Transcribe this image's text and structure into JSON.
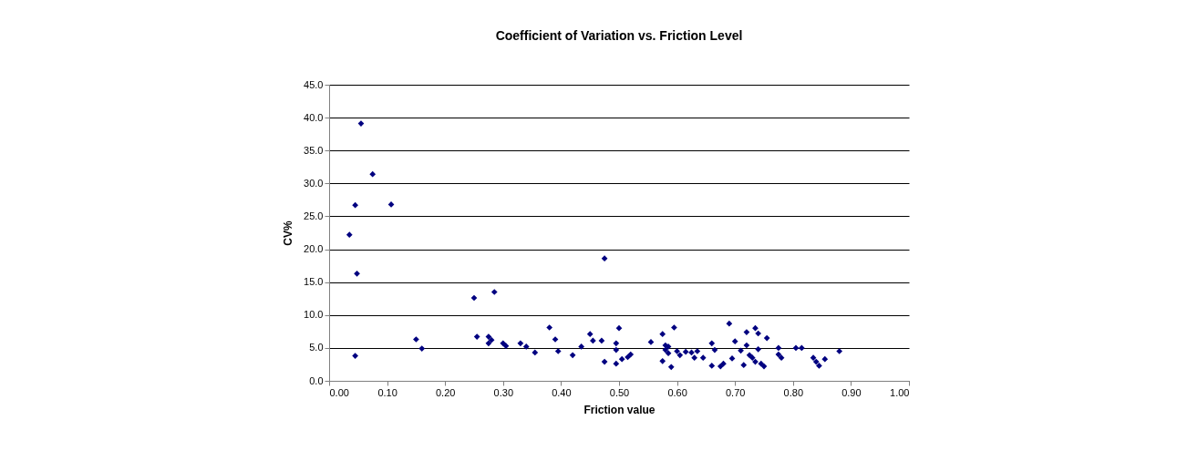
{
  "chart_data": {
    "type": "scatter",
    "title": "Coefficient of Variation vs. Friction Level",
    "xlabel": "Friction value",
    "ylabel": "CV%",
    "marker": "diamond",
    "grid": "y",
    "xlim": [
      0,
      1
    ],
    "xticks": [
      {
        "value": 0,
        "label": "0.00"
      },
      {
        "value": 0.1,
        "label": "0.10"
      },
      {
        "value": 0.2,
        "label": "0.20"
      },
      {
        "value": 0.3,
        "label": "0.30"
      },
      {
        "value": 0.4,
        "label": "0.40"
      },
      {
        "value": 0.5,
        "label": "0.50"
      },
      {
        "value": 0.6,
        "label": "0.60"
      },
      {
        "value": 0.7,
        "label": "0.70"
      },
      {
        "value": 0.8,
        "label": "0.80"
      },
      {
        "value": 0.9,
        "label": "0.90"
      },
      {
        "value": 1,
        "label": "1.00"
      }
    ],
    "ylim": [
      0,
      45
    ],
    "yticks": [
      {
        "value": 0,
        "label": "0.0"
      },
      {
        "value": 5,
        "label": "5.0"
      },
      {
        "value": 10,
        "label": "10.0"
      },
      {
        "value": 15,
        "label": "15.0"
      },
      {
        "value": 20,
        "label": "20.0"
      },
      {
        "value": 25,
        "label": "25.0"
      },
      {
        "value": 30,
        "label": "30.0"
      },
      {
        "value": 35,
        "label": "35.0"
      },
      {
        "value": 40,
        "label": "40.0"
      },
      {
        "value": 45,
        "label": "45.0"
      }
    ],
    "series": [
      {
        "color": "#000080",
        "x": [
          0.035,
          0.045,
          0.045,
          0.048,
          0.055,
          0.075,
          0.107,
          0.15,
          0.16,
          0.25,
          0.255,
          0.275,
          0.275,
          0.28,
          0.285,
          0.3,
          0.305,
          0.33,
          0.34,
          0.355,
          0.38,
          0.39,
          0.395,
          0.42,
          0.435,
          0.45,
          0.455,
          0.47,
          0.475,
          0.475,
          0.495,
          0.495,
          0.495,
          0.5,
          0.505,
          0.515,
          0.52,
          0.555,
          0.575,
          0.575,
          0.58,
          0.58,
          0.585,
          0.585,
          0.59,
          0.595,
          0.6,
          0.605,
          0.615,
          0.625,
          0.63,
          0.635,
          0.645,
          0.66,
          0.66,
          0.665,
          0.675,
          0.68,
          0.69,
          0.695,
          0.7,
          0.71,
          0.715,
          0.72,
          0.72,
          0.725,
          0.73,
          0.735,
          0.735,
          0.74,
          0.74,
          0.745,
          0.75,
          0.755,
          0.775,
          0.775,
          0.78,
          0.805,
          0.815,
          0.835,
          0.84,
          0.845,
          0.855,
          0.88
        ],
        "values": [
          22.2,
          26.7,
          3.8,
          16.3,
          39.1,
          31.4,
          26.8,
          6.3,
          4.9,
          12.6,
          6.7,
          6.7,
          5.7,
          6.2,
          13.5,
          5.7,
          5.3,
          5.7,
          5.2,
          4.3,
          8.1,
          6.3,
          4.5,
          3.9,
          5.2,
          7.1,
          6.1,
          6.1,
          18.6,
          2.9,
          2.6,
          4.7,
          5.7,
          8.0,
          3.3,
          3.6,
          4.0,
          5.9,
          3.0,
          7.1,
          4.7,
          5.4,
          5.2,
          4.2,
          2.1,
          8.1,
          4.5,
          3.9,
          4.4,
          4.3,
          3.5,
          4.5,
          3.5,
          5.7,
          2.3,
          4.7,
          2.2,
          2.6,
          8.7,
          3.4,
          6.0,
          4.6,
          2.4,
          5.4,
          7.4,
          3.9,
          3.5,
          8.0,
          2.9,
          4.8,
          7.2,
          2.6,
          2.2,
          6.5,
          5.0,
          4.0,
          3.5,
          5.0,
          5.0,
          3.5,
          2.9,
          2.3,
          3.3,
          4.5
        ]
      }
    ]
  }
}
